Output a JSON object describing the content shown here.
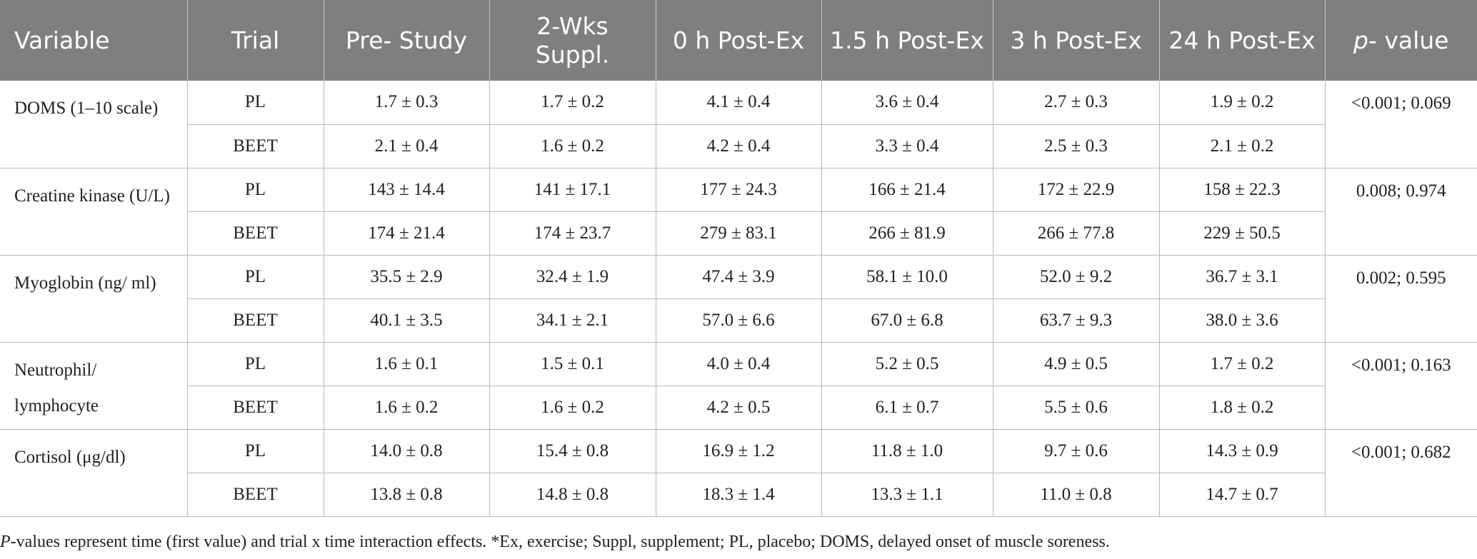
{
  "table": {
    "headers": [
      {
        "text": "Variable"
      },
      {
        "text": "Trial"
      },
      {
        "text": "Pre- Study"
      },
      {
        "text": "2-Wks Suppl."
      },
      {
        "text": "0 h Post-Ex"
      },
      {
        "text": "1.5 h Post-Ex"
      },
      {
        "text": "3 h Post-Ex"
      },
      {
        "text": "24 h Post-Ex"
      },
      {
        "italic": "p",
        "text": "- value"
      }
    ],
    "groups": [
      {
        "variable": "DOMS (1–10 scale)",
        "p_value": "<0.001; 0.069",
        "rows": [
          {
            "trial": "PL",
            "values": [
              "1.7 ± 0.3",
              "1.7 ± 0.2",
              "4.1 ± 0.4",
              "3.6 ± 0.4",
              "2.7 ± 0.3",
              "1.9 ± 0.2"
            ]
          },
          {
            "trial": "BEET",
            "values": [
              "2.1 ± 0.4",
              "1.6 ± 0.2",
              "4.2 ± 0.4",
              "3.3 ± 0.4",
              "2.5 ± 0.3",
              "2.1 ± 0.2"
            ]
          }
        ]
      },
      {
        "variable": "Creatine kinase (U/L)",
        "p_value": "0.008; 0.974",
        "rows": [
          {
            "trial": "PL",
            "values": [
              "143 ± 14.4",
              "141 ± 17.1",
              "177 ± 24.3",
              "166 ± 21.4",
              "172 ± 22.9",
              "158 ± 22.3"
            ]
          },
          {
            "trial": "BEET",
            "values": [
              "174 ± 21.4",
              "174 ± 23.7",
              "279 ± 83.1",
              "266 ± 81.9",
              "266 ± 77.8",
              "229 ± 50.5"
            ]
          }
        ]
      },
      {
        "variable": "Myoglobin (ng/ ml)",
        "p_value": "0.002; 0.595",
        "rows": [
          {
            "trial": "PL",
            "values": [
              "35.5 ± 2.9",
              "32.4 ± 1.9",
              "47.4 ± 3.9",
              "58.1 ± 10.0",
              "52.0 ± 9.2",
              "36.7 ± 3.1"
            ]
          },
          {
            "trial": "BEET",
            "values": [
              "40.1 ± 3.5",
              "34.1 ± 2.1",
              "57.0 ± 6.6",
              "67.0 ± 6.8",
              "63.7 ± 9.3",
              "38.0 ± 3.6"
            ]
          }
        ]
      },
      {
        "variable": "Neutrophil/ lymphocyte",
        "p_value": "<0.001; 0.163",
        "rows": [
          {
            "trial": "PL",
            "values": [
              "1.6 ± 0.1",
              "1.5 ± 0.1",
              "4.0 ± 0.4",
              "5.2 ± 0.5",
              "4.9 ± 0.5",
              "1.7 ± 0.2"
            ]
          },
          {
            "trial": "BEET",
            "values": [
              "1.6 ± 0.2",
              "1.6 ± 0.2",
              "4.2 ± 0.5",
              "6.1 ± 0.7",
              "5.5 ± 0.6",
              "1.8 ± 0.2"
            ]
          }
        ]
      },
      {
        "variable": "Cortisol (μg/dl)",
        "p_value": "<0.001; 0.682",
        "rows": [
          {
            "trial": "PL",
            "values": [
              "14.0 ± 0.8",
              "15.4 ± 0.8",
              "16.9 ± 1.2",
              "11.8 ± 1.0",
              "9.7 ± 0.6",
              "14.3 ± 0.9"
            ]
          },
          {
            "trial": "BEET",
            "values": [
              "13.8 ± 0.8",
              "14.8 ± 0.8",
              "18.3 ± 1.4",
              "13.3 ± 1.1",
              "11.0 ± 0.8",
              "14.7 ± 0.7"
            ]
          }
        ]
      }
    ]
  },
  "footnote": {
    "italic": "P",
    "text": "-values represent time (first value) and trial x time interaction effects. *Ex, exercise; Suppl, supplement; PL, placebo; DOMS, delayed onset of muscle soreness."
  },
  "colors": {
    "header_bg": "#7f7f7f",
    "header_text": "#ffffff",
    "grid": "#b8b8b8",
    "body_text": "#222222"
  }
}
